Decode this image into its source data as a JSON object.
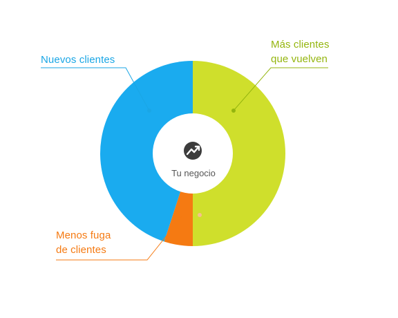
{
  "center": {
    "caption": "Tu negocio",
    "icon": "trending-up-icon"
  },
  "segments": [
    {
      "key": "mas",
      "label_lines": [
        "Más clientes",
        "que vuelven"
      ],
      "value": 50,
      "color": "#cfdf2c",
      "label_color": "#94b50e"
    },
    {
      "key": "menos",
      "label_lines": [
        "Menos fuga",
        "de clientes"
      ],
      "value": 5,
      "color": "#f57a12",
      "label_color": "#f57a12"
    },
    {
      "key": "nuevos",
      "label_lines": [
        "Nuevos clientes"
      ],
      "value": 45,
      "color": "#1aabef",
      "label_color": "#1aa6e5"
    }
  ],
  "colors": {
    "background": "#ffffff",
    "center_fill": "#ffffff",
    "icon_fill": "#3c3c3c",
    "faint_dot": "#f7c08e"
  }
}
